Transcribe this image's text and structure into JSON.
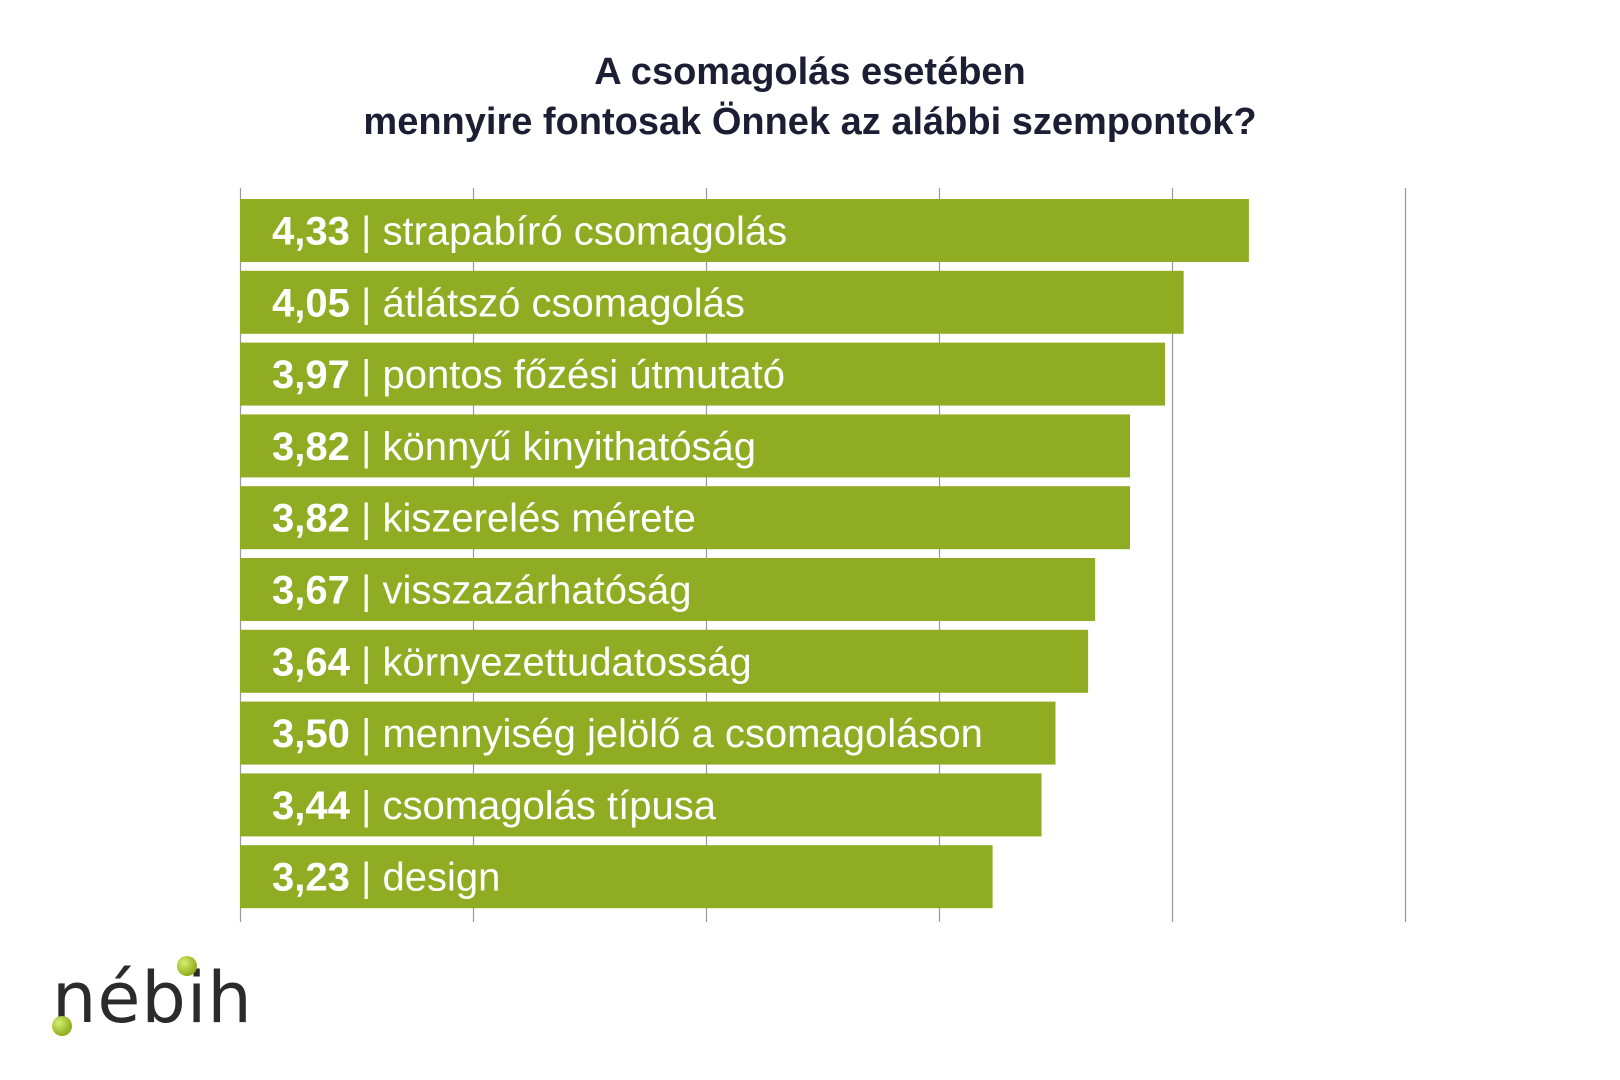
{
  "title": {
    "line1": "A csomagolás esetében",
    "line2": "mennyire fontosak Önnek az alábbi szempontok?"
  },
  "chart_data": {
    "type": "bar",
    "orientation": "horizontal",
    "title": "A csomagolás esetében mennyire fontosak Önnek az alábbi szempontok?",
    "categories": [
      "strapabíró csomagolás",
      "átlátszó csomagolás",
      "pontos főzési útmutató",
      "könnyű kinyithatóság",
      "kiszerelés mérete",
      "visszazárhatóság",
      "környezettudatosság",
      "mennyiség jelölő a csomagoláson",
      "csomagolás típusa",
      "design"
    ],
    "values": [
      4.33,
      4.05,
      3.97,
      3.82,
      3.82,
      3.67,
      3.64,
      3.5,
      3.44,
      3.23
    ],
    "value_labels": [
      "4,33",
      "4,05",
      "3,97",
      "3,82",
      "3,82",
      "3,67",
      "3,64",
      "3,50",
      "3,44",
      "3,23"
    ],
    "separator": " | ",
    "xlim": [
      0,
      5
    ],
    "grid": true,
    "legend": "none",
    "bar_color": "#8fac23",
    "label_color": "#ffffff",
    "gridline_color": "#9a9a9a"
  },
  "logo": {
    "text": "nébih",
    "accent_color": "#9cbc24"
  }
}
